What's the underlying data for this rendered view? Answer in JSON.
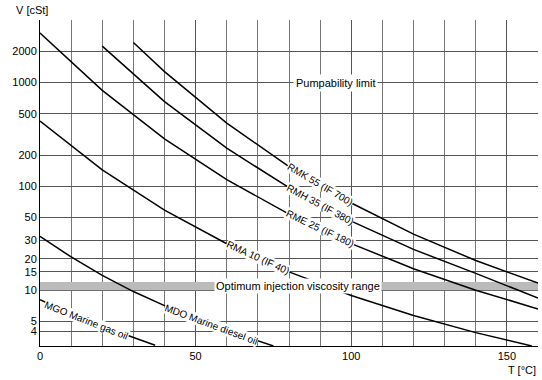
{
  "chart_data": {
    "type": "line",
    "x_label": "T [°C]",
    "y_label": "V [cSt]",
    "log": "y",
    "grid": true,
    "xlim": [
      0,
      160
    ],
    "xticks": [
      0,
      50,
      100,
      150
    ],
    "ylim": [
      2.9,
      4000
    ],
    "yticks": [
      4,
      5,
      10,
      15,
      20,
      30,
      50,
      100,
      200,
      500,
      1000,
      2000
    ],
    "series": [
      {
        "name": "MGO Marine gas oil",
        "color": "#000000",
        "x": [
          0,
          10,
          20,
          30,
          37
        ],
        "values": [
          8.1,
          5.9,
          4.5,
          3.5,
          2.95
        ]
      },
      {
        "name": "MDO Marine diesel oil",
        "color": "#000000",
        "x": [
          0,
          10,
          20,
          30,
          40,
          50,
          60,
          75
        ],
        "values": [
          33,
          20.9,
          13.9,
          9.7,
          7.1,
          5.3,
          4.1,
          2.9
        ]
      },
      {
        "name": "RMA 10 (IF 40)",
        "color": "#000000",
        "x": [
          0,
          20,
          40,
          60,
          80,
          100,
          120,
          140,
          158
        ],
        "values": [
          425,
          144,
          58.9,
          28,
          15,
          8.9,
          5.7,
          3.9,
          2.9
        ]
      },
      {
        "name": "RME 25 (IF 180)",
        "color": "#000000",
        "x": [
          0,
          20,
          40,
          60,
          80,
          100,
          120,
          140,
          160
        ],
        "values": [
          3000,
          840,
          287,
          116,
          54,
          28.1,
          16.1,
          10,
          6.6
        ]
      },
      {
        "name": "RMH 35 (IF 380)",
        "color": "#000000",
        "x": [
          20,
          40,
          60,
          80,
          100,
          120,
          140,
          160
        ],
        "values": [
          2240,
          655,
          233,
          97,
          46.3,
          24.7,
          14.5,
          8.4
        ]
      },
      {
        "name": "RMK 55 (IF 700)",
        "color": "#000000",
        "x": [
          30,
          40,
          60,
          80,
          100,
          120,
          140,
          160
        ],
        "values": [
          2432,
          1274,
          406,
          155,
          69.1,
          34.7,
          19.3,
          11.7
        ]
      }
    ],
    "bands": [
      {
        "label": "Optimum injection viscosity range",
        "range": [
          10,
          12
        ],
        "color": "#bbbbbb",
        "x": 83
      }
    ],
    "annotations": [
      {
        "text": "Pumpability limit",
        "x": 95,
        "y": 1000
      }
    ]
  }
}
